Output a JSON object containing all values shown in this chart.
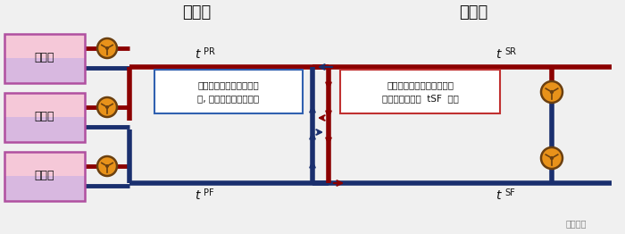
{
  "title_left": "一次侧",
  "title_right": "二次侧",
  "chiller_label": "冷冻机",
  "tPR": "t   PR",
  "tPF": "t   PF",
  "tSR": "t   SR",
  "tSF": "t   SF",
  "text_box1_line1": "当一次侧流量高于二次侧",
  "text_box1_line2": "时, 一次侧回水温度降低",
  "text_box2_line1": "当二次侧流量高于一次侧时",
  "text_box2_line2": "二次侧流体温度  tSF  升高",
  "color_red": "#8b0000",
  "color_blue": "#1a2f6e",
  "color_red_arrow": "#8b0000",
  "color_blue_arrow": "#1a2f6e",
  "color_chiller_top": "#f5c0d0",
  "color_chiller_bot": "#d0c0e8",
  "color_chiller_border": "#c04080",
  "color_pump_fill": "#e8921a",
  "color_pump_border": "#6b4010",
  "color_bg": "#f0f0f0",
  "color_text": "#000000",
  "color_box1_border": "#3060b0",
  "color_box2_border": "#c03030",
  "pipe_lw": 4.0,
  "pump_r": 11
}
